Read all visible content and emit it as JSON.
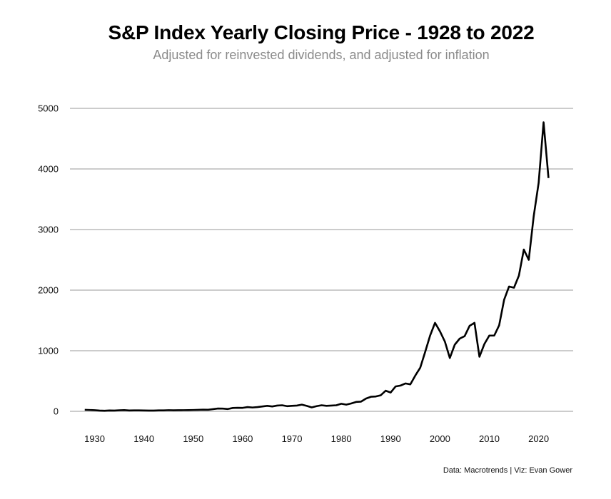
{
  "chart_data": {
    "type": "line",
    "title": "S&P Index Yearly Closing Price - 1928 to 2022",
    "subtitle": "Adjusted for reinvested dividends, and adjusted for inflation",
    "xlabel": "",
    "ylabel": "",
    "x_ticks": [
      1930,
      1940,
      1950,
      1960,
      1970,
      1980,
      1990,
      2000,
      2010,
      2020
    ],
    "y_ticks": [
      0,
      1000,
      2000,
      3000,
      4000,
      5000
    ],
    "xlim": [
      1925,
      2027
    ],
    "ylim": [
      0,
      5000
    ],
    "grid": "horizontal",
    "line_color": "#000000",
    "grid_color": "#cccccc",
    "series": [
      {
        "x": [
          1928,
          1929,
          1930,
          1931,
          1932,
          1933,
          1934,
          1935,
          1936,
          1937,
          1938,
          1939,
          1940,
          1941,
          1942,
          1943,
          1944,
          1945,
          1946,
          1947,
          1948,
          1949,
          1950,
          1951,
          1952,
          1953,
          1954,
          1955,
          1956,
          1957,
          1958,
          1959,
          1960,
          1961,
          1962,
          1963,
          1964,
          1965,
          1966,
          1967,
          1968,
          1969,
          1970,
          1971,
          1972,
          1973,
          1974,
          1975,
          1976,
          1977,
          1978,
          1979,
          1980,
          1981,
          1982,
          1983,
          1984,
          1985,
          1986,
          1987,
          1988,
          1989,
          1990,
          1991,
          1992,
          1993,
          1994,
          1995,
          1996,
          1997,
          1998,
          1999,
          2000,
          2001,
          2002,
          2003,
          2004,
          2005,
          2006,
          2007,
          2008,
          2009,
          2010,
          2011,
          2012,
          2013,
          2014,
          2015,
          2016,
          2017,
          2018,
          2019,
          2020,
          2021,
          2022
        ],
        "values": [
          25,
          22,
          18,
          12,
          10,
          14,
          13,
          17,
          20,
          14,
          16,
          15,
          14,
          13,
          12,
          15,
          16,
          19,
          17,
          18,
          19,
          20,
          22,
          24,
          27,
          26,
          36,
          46,
          45,
          38,
          55,
          58,
          57,
          70,
          63,
          70,
          80,
          90,
          80,
          95,
          100,
          85,
          90,
          95,
          110,
          90,
          65,
          85,
          100,
          90,
          95,
          100,
          125,
          110,
          130,
          155,
          160,
          210,
          240,
          245,
          265,
          340,
          310,
          410,
          425,
          460,
          445,
          590,
          720,
          980,
          1250,
          1460,
          1320,
          1150,
          880,
          1100,
          1200,
          1240,
          1410,
          1460,
          900,
          1110,
          1250,
          1250,
          1420,
          1840,
          2060,
          2040,
          2240,
          2670,
          2500,
          3220,
          3770,
          4770,
          3850
        ]
      }
    ]
  },
  "footer": "Data: Macrotrends | Viz: Evan Gower"
}
